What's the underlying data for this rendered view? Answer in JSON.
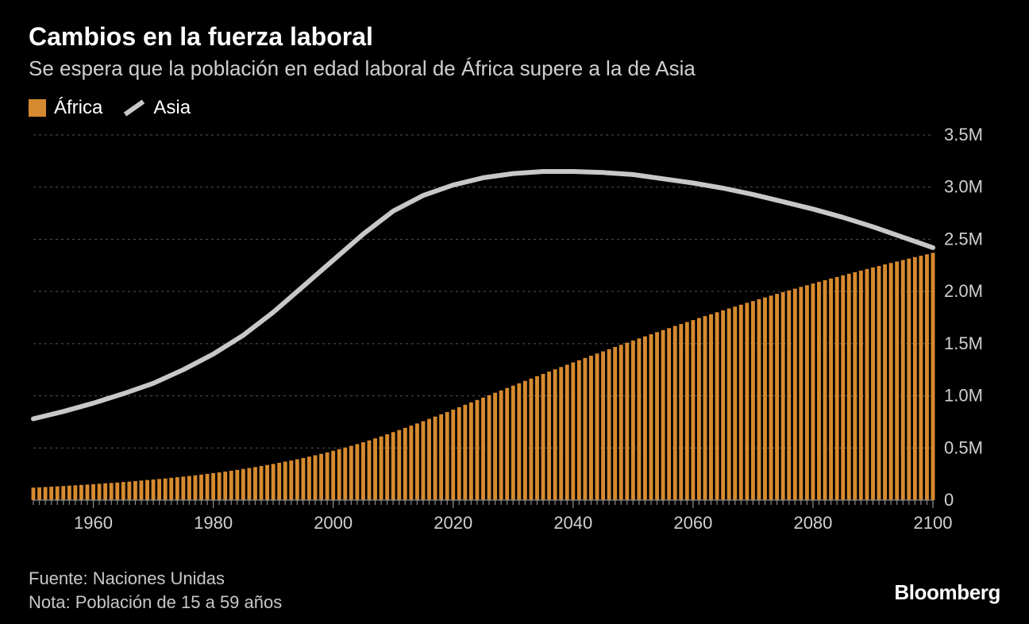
{
  "title": "Cambios en la fuerza laboral",
  "subtitle": "Se espera que la población en edad laboral de África supere a la de Asia",
  "legend": {
    "africa": {
      "label": "África",
      "color": "#d68a2f"
    },
    "asia": {
      "label": "Asia",
      "color": "#c8c8c8"
    }
  },
  "footer": {
    "source": "Fuente: Naciones Unidas",
    "note": "Nota: Población de 15 a 59 años"
  },
  "brand": "Bloomberg",
  "chart": {
    "type": "bar+line",
    "background_color": "#000000",
    "grid_color": "#555555",
    "axis_color": "#888888",
    "label_color": "#d0d0d0",
    "label_fontsize": 22,
    "x": {
      "min": 1950,
      "max": 2100,
      "ticks": [
        1960,
        1980,
        2000,
        2020,
        2040,
        2060,
        2080,
        2100
      ]
    },
    "y": {
      "min": 0,
      "max": 3.5,
      "unit": "M",
      "ticks": [
        0,
        0.5,
        1.0,
        1.5,
        2.0,
        2.5,
        3.0,
        3.5
      ],
      "tick_labels": [
        "0",
        "0.5M",
        "1.0M",
        "1.5M",
        "2.0M",
        "2.5M",
        "3.0M",
        "3.5M"
      ]
    },
    "africa_bars": {
      "color": "#d68a2f",
      "bar_gap_ratio": 0.35,
      "years": [
        1950,
        1951,
        1952,
        1953,
        1954,
        1955,
        1956,
        1957,
        1958,
        1959,
        1960,
        1961,
        1962,
        1963,
        1964,
        1965,
        1966,
        1967,
        1968,
        1969,
        1970,
        1971,
        1972,
        1973,
        1974,
        1975,
        1976,
        1977,
        1978,
        1979,
        1980,
        1981,
        1982,
        1983,
        1984,
        1985,
        1986,
        1987,
        1988,
        1989,
        1990,
        1991,
        1992,
        1993,
        1994,
        1995,
        1996,
        1997,
        1998,
        1999,
        2000,
        2001,
        2002,
        2003,
        2004,
        2005,
        2006,
        2007,
        2008,
        2009,
        2010,
        2011,
        2012,
        2013,
        2014,
        2015,
        2016,
        2017,
        2018,
        2019,
        2020,
        2021,
        2022,
        2023,
        2024,
        2025,
        2026,
        2027,
        2028,
        2029,
        2030,
        2031,
        2032,
        2033,
        2034,
        2035,
        2036,
        2037,
        2038,
        2039,
        2040,
        2041,
        2042,
        2043,
        2044,
        2045,
        2046,
        2047,
        2048,
        2049,
        2050,
        2051,
        2052,
        2053,
        2054,
        2055,
        2056,
        2057,
        2058,
        2059,
        2060,
        2061,
        2062,
        2063,
        2064,
        2065,
        2066,
        2067,
        2068,
        2069,
        2070,
        2071,
        2072,
        2073,
        2074,
        2075,
        2076,
        2077,
        2078,
        2079,
        2080,
        2081,
        2082,
        2083,
        2084,
        2085,
        2086,
        2087,
        2088,
        2089,
        2090,
        2091,
        2092,
        2093,
        2094,
        2095,
        2096,
        2097,
        2098,
        2099,
        2100
      ],
      "values": [
        0.12,
        0.123,
        0.126,
        0.129,
        0.132,
        0.135,
        0.139,
        0.142,
        0.146,
        0.149,
        0.153,
        0.157,
        0.161,
        0.165,
        0.169,
        0.174,
        0.178,
        0.183,
        0.188,
        0.193,
        0.198,
        0.203,
        0.208,
        0.214,
        0.22,
        0.226,
        0.232,
        0.238,
        0.245,
        0.252,
        0.259,
        0.266,
        0.274,
        0.282,
        0.29,
        0.299,
        0.308,
        0.317,
        0.327,
        0.337,
        0.347,
        0.358,
        0.369,
        0.38,
        0.392,
        0.404,
        0.417,
        0.43,
        0.444,
        0.458,
        0.473,
        0.488,
        0.504,
        0.52,
        0.537,
        0.555,
        0.573,
        0.592,
        0.611,
        0.631,
        0.652,
        0.672,
        0.693,
        0.714,
        0.735,
        0.757,
        0.779,
        0.801,
        0.823,
        0.845,
        0.868,
        0.891,
        0.914,
        0.937,
        0.96,
        0.983,
        1.006,
        1.029,
        1.052,
        1.075,
        1.098,
        1.12,
        1.143,
        1.165,
        1.188,
        1.21,
        1.232,
        1.254,
        1.276,
        1.298,
        1.32,
        1.341,
        1.363,
        1.384,
        1.405,
        1.426,
        1.447,
        1.468,
        1.489,
        1.509,
        1.53,
        1.55,
        1.57,
        1.59,
        1.61,
        1.63,
        1.649,
        1.669,
        1.688,
        1.707,
        1.726,
        1.745,
        1.764,
        1.782,
        1.801,
        1.819,
        1.837,
        1.855,
        1.873,
        1.891,
        1.908,
        1.926,
        1.943,
        1.96,
        1.977,
        1.994,
        2.011,
        2.027,
        2.044,
        2.06,
        2.076,
        2.092,
        2.108,
        2.124,
        2.139,
        2.155,
        2.17,
        2.185,
        2.2,
        2.215,
        2.23,
        2.244,
        2.259,
        2.273,
        2.287,
        2.301,
        2.315,
        2.329,
        2.342,
        2.356,
        2.37
      ]
    },
    "asia_line": {
      "color": "#c8c8c8",
      "stroke_width": 6,
      "years": [
        1950,
        1955,
        1960,
        1965,
        1970,
        1975,
        1980,
        1985,
        1990,
        1995,
        2000,
        2005,
        2010,
        2015,
        2020,
        2025,
        2030,
        2035,
        2040,
        2045,
        2050,
        2055,
        2060,
        2065,
        2070,
        2075,
        2080,
        2085,
        2090,
        2095,
        2100
      ],
      "values": [
        0.78,
        0.85,
        0.93,
        1.02,
        1.12,
        1.25,
        1.4,
        1.58,
        1.8,
        2.05,
        2.3,
        2.55,
        2.77,
        2.92,
        3.02,
        3.09,
        3.13,
        3.15,
        3.15,
        3.14,
        3.12,
        3.08,
        3.04,
        2.99,
        2.93,
        2.86,
        2.79,
        2.71,
        2.62,
        2.52,
        2.42
      ]
    }
  }
}
